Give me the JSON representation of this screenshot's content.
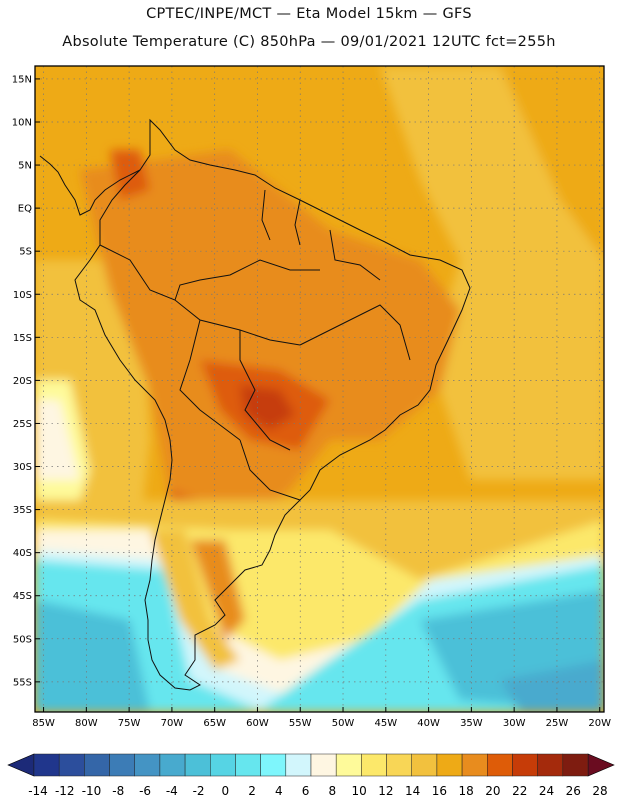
{
  "header": {
    "line1": "CPTEC/INPE/MCT —  Eta Model 15km — GFS",
    "line2": "Absolute Temperature (C) 850hPa — 09/01/2021 12UTC fct=255h"
  },
  "map": {
    "lat_labels": [
      "15N",
      "10N",
      "5N",
      "EQ",
      "5S",
      "10S",
      "15S",
      "20S",
      "25S",
      "30S",
      "35S",
      "40S",
      "45S",
      "50S",
      "55S"
    ],
    "lat_values": [
      15,
      10,
      5,
      0,
      -5,
      -10,
      -15,
      -20,
      -25,
      -30,
      -35,
      -40,
      -45,
      -50,
      -55
    ],
    "lon_labels": [
      "85W",
      "80W",
      "75W",
      "70W",
      "65W",
      "60W",
      "55W",
      "50W",
      "45W",
      "40W",
      "35W",
      "30W",
      "25W",
      "20W"
    ],
    "lon_values": [
      -85,
      -80,
      -75,
      -70,
      -65,
      -60,
      -55,
      -50,
      -45,
      -40,
      -35,
      -30,
      -25,
      -20
    ],
    "lon_range": [
      -86,
      -19.5
    ],
    "lat_range": [
      -58.5,
      16.5
    ]
  },
  "colorbar": {
    "labels": [
      "-14",
      "-12",
      "-10",
      "-8",
      "-6",
      "-4",
      "-2",
      "0",
      "2",
      "4",
      "6",
      "8",
      "10",
      "12",
      "14",
      "16",
      "18",
      "20",
      "22",
      "24",
      "26",
      "28"
    ],
    "colors": [
      "#20368c",
      "#2c4e9c",
      "#3466a8",
      "#3c7cb6",
      "#4494c4",
      "#48aace",
      "#4cc0d8",
      "#56d4e4",
      "#66e6ee",
      "#7ef6fc",
      "#d2f6fc",
      "#fef6e2",
      "#fefa9a",
      "#fce86a",
      "#f8d656",
      "#f2c13e",
      "#eeaa16",
      "#e88c1e",
      "#de5c08",
      "#c63c08",
      "#a42a0c",
      "#7e1c10"
    ],
    "under_color": "#1c2a78",
    "over_color": "#6a0c20",
    "unit": "C"
  }
}
